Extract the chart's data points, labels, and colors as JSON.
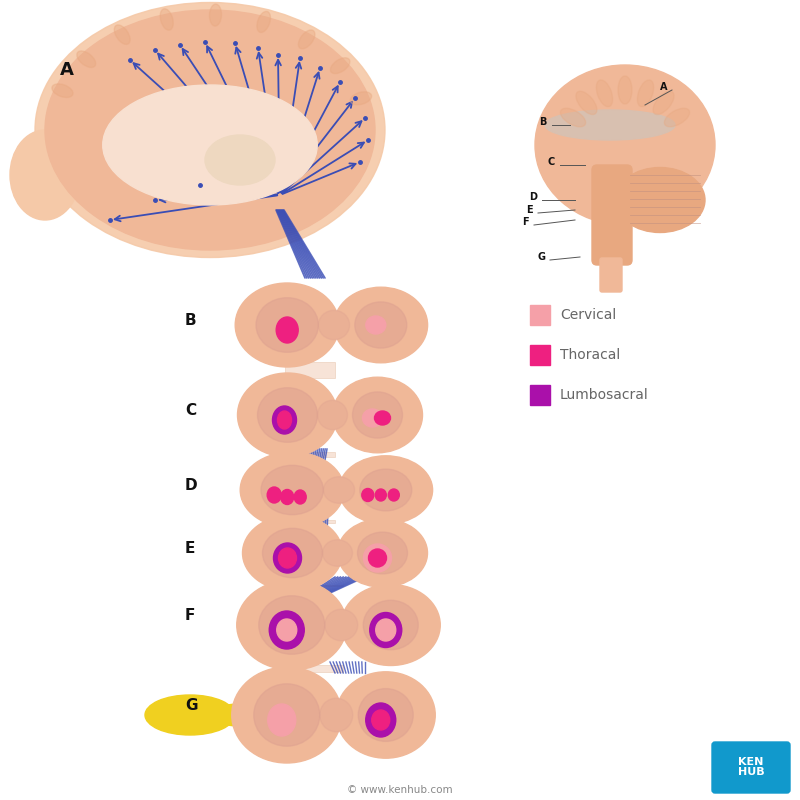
{
  "bg_color": "#ffffff",
  "skin_light": "#f5c9a8",
  "skin_mid": "#f0b898",
  "skin_dark": "#e8a880",
  "skin_inner": "#dda090",
  "blue_tract": "#3a4db5",
  "blue_light": "#8898dd",
  "pink_cervical": "#f5a0a8",
  "pink_thoracal": "#ee2080",
  "purple_lumbo": "#aa10aa",
  "yellow_nerve": "#f0d020",
  "label_color": "#111111",
  "legend_label_color": "#666666",
  "legend_cervical": "Cervical",
  "legend_thoracal": "Thoracal",
  "legend_lumbosacral": "Lumbosacral",
  "kenhub_color": "#1199cc",
  "watermark": "© www.kenhub.com",
  "label_A": "A",
  "label_B": "B",
  "label_C": "C",
  "label_D": "D",
  "label_E": "E",
  "label_F": "F",
  "label_G": "G"
}
